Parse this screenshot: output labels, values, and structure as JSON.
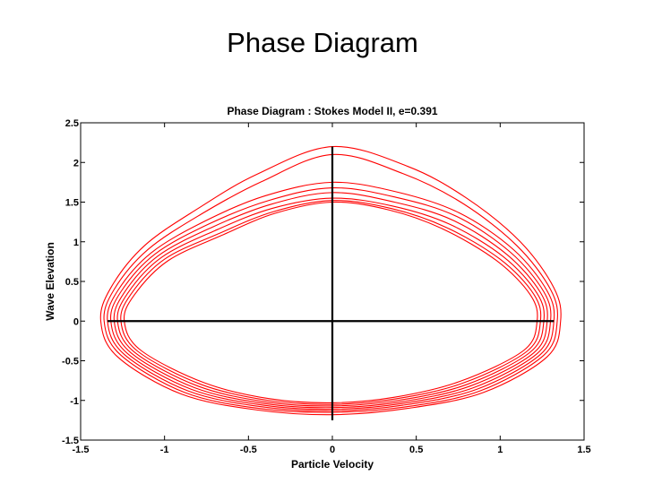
{
  "slide": {
    "title": "Phase Diagram"
  },
  "chart_data": {
    "type": "line",
    "title": "Phase Diagram : Stokes Model II, e=0.391",
    "xlabel": "Particle Velocity",
    "ylabel": "Wave Elevation",
    "xlim": [
      -1.5,
      1.5
    ],
    "ylim": [
      -1.5,
      2.5
    ],
    "xticks": [
      -1.5,
      -1,
      -0.5,
      0,
      0.5,
      1,
      1.5
    ],
    "xtick_labels": [
      "-1.5",
      "-1",
      "-0.5",
      "0",
      "0.5",
      "1",
      "1.5"
    ],
    "yticks": [
      -1.5,
      -1,
      -0.5,
      0,
      0.5,
      1,
      1.5,
      2,
      2.5
    ],
    "ytick_labels": [
      "-1.5",
      "-1",
      "-0.5",
      "0",
      "0.5",
      "1",
      "1.5",
      "2",
      "2.5"
    ],
    "grid": false,
    "colors": {
      "series": "#ff0000",
      "axes_cross": "#000000"
    },
    "series": [
      {
        "x": [
          -1.38,
          -1.32,
          -1.12,
          -0.8,
          -0.45,
          0.0,
          0.45,
          0.8,
          1.12,
          1.32,
          1.36,
          1.28,
          0.9,
          0.45,
          0.0,
          -0.45,
          -0.9,
          -1.28,
          -1.38
        ],
        "y": [
          0.0,
          0.42,
          0.95,
          1.42,
          1.85,
          2.2,
          1.95,
          1.55,
          1.0,
          0.42,
          0.0,
          -0.45,
          -0.9,
          -1.1,
          -1.18,
          -1.12,
          -0.92,
          -0.45,
          0.0
        ]
      },
      {
        "x": [
          -1.36,
          -1.3,
          -1.1,
          -0.78,
          -0.42,
          0.0,
          0.42,
          0.78,
          1.1,
          1.3,
          1.34,
          1.26,
          0.88,
          0.44,
          0.0,
          -0.44,
          -0.88,
          -1.26,
          -1.36
        ],
        "y": [
          0.0,
          0.4,
          0.9,
          1.35,
          1.76,
          2.1,
          1.86,
          1.48,
          0.95,
          0.4,
          0.0,
          -0.43,
          -0.88,
          -1.08,
          -1.15,
          -1.1,
          -0.9,
          -0.43,
          0.0
        ]
      },
      {
        "x": [
          -1.34,
          -1.28,
          -1.08,
          -0.76,
          -0.4,
          0.0,
          0.4,
          0.76,
          1.08,
          1.28,
          1.32,
          1.24,
          0.86,
          0.42,
          0.0,
          -0.42,
          -0.86,
          -1.24,
          -1.34
        ],
        "y": [
          0.0,
          0.38,
          0.86,
          1.26,
          1.58,
          1.75,
          1.62,
          1.36,
          0.9,
          0.38,
          0.0,
          -0.42,
          -0.86,
          -1.06,
          -1.13,
          -1.08,
          -0.88,
          -0.42,
          0.0
        ]
      },
      {
        "x": [
          -1.32,
          -1.26,
          -1.06,
          -0.74,
          -0.38,
          0.0,
          0.38,
          0.74,
          1.06,
          1.26,
          1.3,
          1.22,
          0.84,
          0.41,
          0.0,
          -0.41,
          -0.84,
          -1.22,
          -1.32
        ],
        "y": [
          0.0,
          0.37,
          0.84,
          1.22,
          1.52,
          1.68,
          1.56,
          1.32,
          0.87,
          0.37,
          0.0,
          -0.41,
          -0.84,
          -1.04,
          -1.11,
          -1.06,
          -0.86,
          -0.41,
          0.0
        ]
      },
      {
        "x": [
          -1.3,
          -1.24,
          -1.04,
          -0.72,
          -0.37,
          0.0,
          0.37,
          0.72,
          1.04,
          1.24,
          1.28,
          1.2,
          0.82,
          0.4,
          0.0,
          -0.4,
          -0.82,
          -1.2,
          -1.3
        ],
        "y": [
          0.0,
          0.36,
          0.82,
          1.18,
          1.47,
          1.62,
          1.5,
          1.27,
          0.84,
          0.36,
          0.0,
          -0.4,
          -0.82,
          -1.02,
          -1.09,
          -1.04,
          -0.84,
          -0.4,
          0.0
        ]
      },
      {
        "x": [
          -1.28,
          -1.22,
          -1.02,
          -0.7,
          -0.36,
          0.0,
          0.36,
          0.7,
          1.02,
          1.22,
          1.26,
          1.18,
          0.8,
          0.39,
          0.0,
          -0.39,
          -0.8,
          -1.18,
          -1.28
        ],
        "y": [
          0.0,
          0.35,
          0.8,
          1.14,
          1.42,
          1.55,
          1.45,
          1.22,
          0.81,
          0.35,
          0.0,
          -0.39,
          -0.8,
          -1.0,
          -1.07,
          -1.02,
          -0.82,
          -0.39,
          0.0
        ]
      },
      {
        "x": [
          -1.26,
          -1.2,
          -1.0,
          -0.68,
          -0.35,
          0.0,
          0.35,
          0.68,
          1.0,
          1.2,
          1.24,
          1.16,
          0.78,
          0.38,
          0.0,
          -0.38,
          -0.78,
          -1.16,
          -1.26
        ],
        "y": [
          0.0,
          0.34,
          0.78,
          1.1,
          1.38,
          1.52,
          1.42,
          1.18,
          0.78,
          0.34,
          0.0,
          -0.38,
          -0.78,
          -0.98,
          -1.05,
          -1.0,
          -0.8,
          -0.38,
          0.0
        ]
      },
      {
        "x": [
          -1.24,
          -1.18,
          -0.98,
          -0.66,
          -0.34,
          0.0,
          0.34,
          0.66,
          0.98,
          1.18,
          1.22,
          1.14,
          0.76,
          0.37,
          0.0,
          -0.37,
          -0.76,
          -1.14,
          -1.24
        ],
        "y": [
          0.0,
          0.33,
          0.76,
          1.08,
          1.36,
          1.5,
          1.4,
          1.16,
          0.76,
          0.33,
          0.0,
          -0.37,
          -0.76,
          -0.96,
          -1.03,
          -0.98,
          -0.78,
          -0.37,
          0.0
        ]
      }
    ]
  }
}
